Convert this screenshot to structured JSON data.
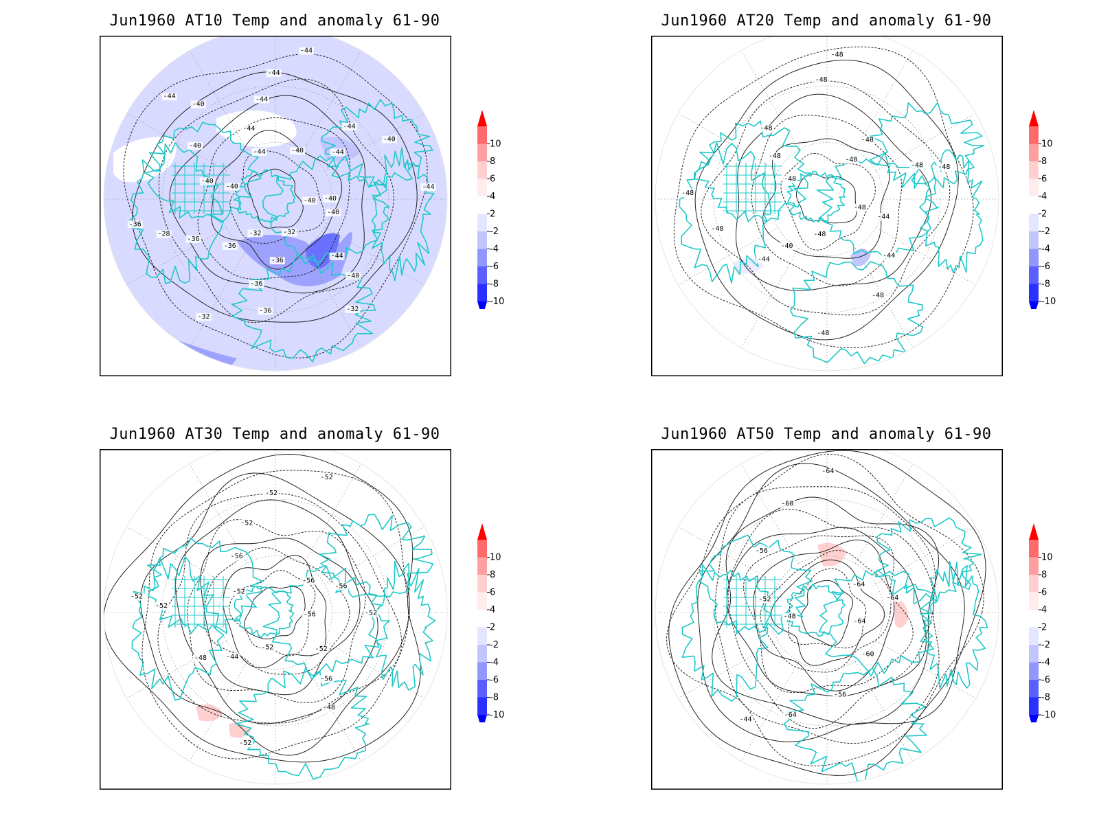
{
  "colors": {
    "coast": "#1ec8c8",
    "frame": "#000000",
    "grid": "#9a9a9a",
    "contour": "#222222"
  },
  "colorbar": {
    "labels": [
      "10",
      "8",
      "6",
      "4",
      "2",
      "-2",
      "-4",
      "-6",
      "-8",
      "-10"
    ],
    "colors": [
      "#ff3333",
      "#ff6a6a",
      "#ff9f9f",
      "#ffd0d0",
      "#ffecec",
      "#ffffff",
      "#e4e6ff",
      "#c2c6ff",
      "#9296ff",
      "#5a60ff",
      "#2a30ff",
      "#0000ff"
    ],
    "top_arrow_color": "#ff0000",
    "bottom_arrow_color": "#0000ff"
  },
  "panels": [
    {
      "id": "p1",
      "title": "Jun1960 AT10 Temp and anomaly 61-90",
      "contour_labels": [
        "-40",
        "-40",
        "-44",
        "-40",
        "-32",
        "-32",
        "-36",
        "-36",
        "-36",
        "-32",
        "-32",
        "-36",
        "-36",
        "-28",
        "-36",
        "-40",
        "-40",
        "-40",
        "-40",
        "-44",
        "-44",
        "-44",
        "-44",
        "-44",
        "-44",
        "-40",
        "-44",
        "-44",
        "-40",
        "-44",
        "-40"
      ],
      "anomaly_fill": "negative"
    },
    {
      "id": "p2",
      "title": "Jun1960 AT20 Temp and anomaly 61-90",
      "contour_labels": [
        "-48",
        "-44",
        "-44",
        "-48",
        "-48",
        "-48",
        "-40",
        "-44",
        "-48",
        "-48",
        "-48",
        "-48",
        "-48",
        "-48",
        "-48",
        "-48",
        "-48",
        "-48",
        "-48"
      ],
      "anomaly_fill": "weak"
    },
    {
      "id": "p3",
      "title": "Jun1960 AT30 Temp and anomaly 61-90",
      "contour_labels": [
        "-56",
        "-52",
        "-56",
        "-48",
        "-52",
        "-52",
        "-44",
        "-48",
        "-52",
        "-52",
        "-52",
        "-56",
        "-52",
        "-52",
        "-52",
        "-56",
        "-56",
        "-52"
      ],
      "anomaly_fill": "positive-spots"
    },
    {
      "id": "p4",
      "title": "Jun1960 AT50 Temp and anomaly 61-90",
      "contour_labels": [
        "-64",
        "-60",
        "-56",
        "-64",
        "-44",
        "-48",
        "-52",
        "-56",
        "-60",
        "-64",
        "-64",
        "-64"
      ],
      "anomaly_fill": "positive-spots"
    }
  ]
}
